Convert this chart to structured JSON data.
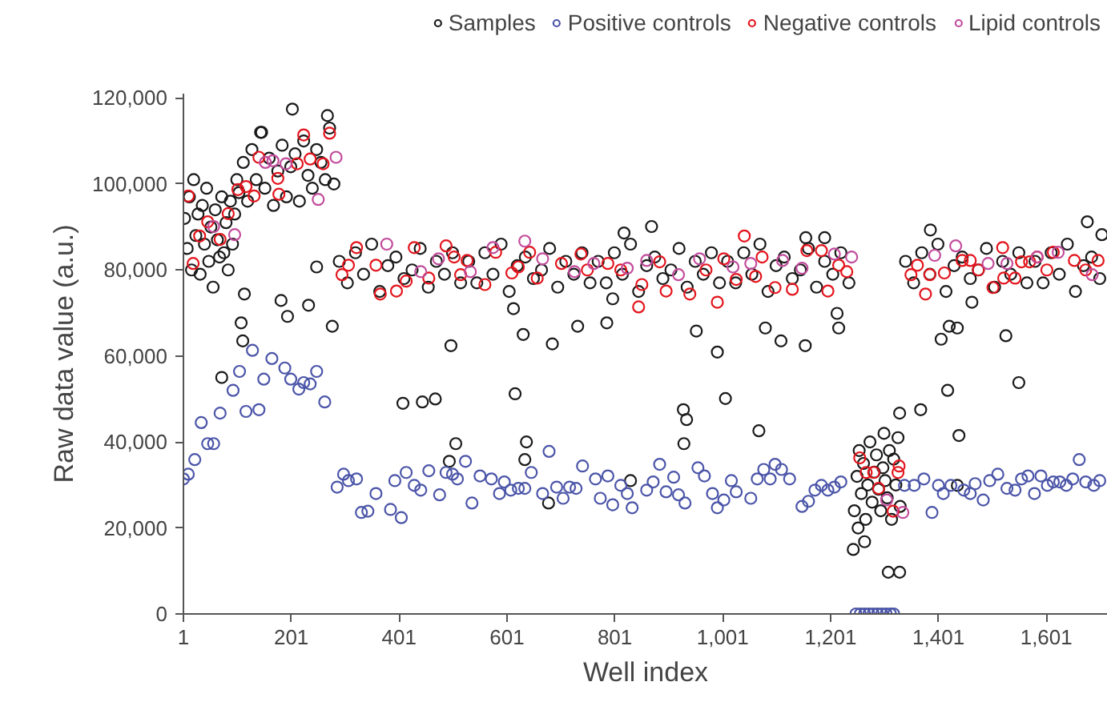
{
  "chart_data": {
    "type": "scatter",
    "xlabel": "Well index",
    "ylabel": "Raw data value (a.u.)",
    "xlim": [
      1,
      1715
    ],
    "ylim": [
      0,
      121000
    ],
    "xticks": [
      1,
      {
        "value": 201,
        "label": "201"
      },
      {
        "value": 401,
        "label": "401"
      },
      {
        "value": 601,
        "label": "601"
      },
      {
        "value": 801,
        "label": "801"
      },
      {
        "value": 1001,
        "label": "1,001"
      },
      {
        "value": 1201,
        "label": "1,201"
      },
      {
        "value": 1401,
        "label": "1,401"
      },
      {
        "value": 1601,
        "label": "1,601"
      }
    ],
    "yticks": [
      0,
      {
        "value": 20000,
        "label": "20,000"
      },
      {
        "value": 40000,
        "label": "40,000"
      },
      {
        "value": 60000,
        "label": "60,000"
      },
      {
        "value": 80000,
        "label": "80,000"
      },
      {
        "value": 100000,
        "label": "100,000"
      },
      {
        "value": 120000,
        "label": "120,000"
      }
    ],
    "grid": false,
    "legend": "top",
    "marker": "circle",
    "series": [
      {
        "name": "Samples",
        "color": "#1a1a1a",
        "x": [
          3,
          8,
          12,
          16,
          20,
          24,
          28,
          32,
          36,
          40,
          44,
          48,
          52,
          56,
          60,
          64,
          68,
          72,
          76,
          80,
          84,
          88,
          92,
          96,
          100,
          104,
          112,
          120,
          128,
          136,
          144,
          152,
          160,
          168,
          176,
          184,
          192,
          200,
          208,
          216,
          224,
          232,
          240,
          248,
          256,
          264,
          272,
          280,
          72,
          114,
          108,
          111,
          182,
          194,
          233,
          248,
          277,
          203,
          268,
          146,
          290,
          305,
          320,
          335,
          350,
          365,
          380,
          395,
          410,
          425,
          440,
          455,
          470,
          485,
          500,
          515,
          530,
          545,
          560,
          575,
          590,
          605,
          620,
          635,
          650,
          665,
          680,
          695,
          710,
          725,
          740,
          755,
          770,
          785,
          800,
          815,
          830,
          845,
          860,
          875,
          890,
          905,
          920,
          935,
          950,
          965,
          980,
          995,
          1010,
          1025,
          1040,
          1055,
          1070,
          1085,
          1100,
          1115,
          1130,
          1145,
          1160,
          1175,
          1190,
          1205,
          1220,
          1235,
          408,
          444,
          468,
          497,
          506,
          494,
          616,
          631,
          637,
          634,
          685,
          678,
          613,
          732,
          786,
          797,
          869,
          818,
          952,
          991,
          1006,
          928,
          934,
          929,
          1068,
          830,
          1080,
          1109,
          1154,
          1213,
          1216,
          1155,
          1190,
          1243,
          1264,
          1308,
          1329,
          1329,
          1245,
          1250,
          1254,
          1258,
          1262,
          1266,
          1270,
          1274,
          1278,
          1282,
          1286,
          1290,
          1294,
          1298,
          1302,
          1306,
          1310,
          1314,
          1318,
          1322,
          1326,
          1330,
          1252,
          1300,
          1340,
          1355,
          1370,
          1385,
          1400,
          1415,
          1430,
          1445,
          1460,
          1475,
          1490,
          1505,
          1520,
          1535,
          1550,
          1565,
          1580,
          1595,
          1610,
          1625,
          1640,
          1655,
          1670,
          1685,
          1700,
          1368,
          1418,
          1439,
          1406,
          1421,
          1436,
          1526,
          1550,
          1463,
          1677,
          1704,
          1386,
          1436
        ],
        "values": [
          92000,
          85000,
          97000,
          80000,
          101000,
          88000,
          93000,
          79000,
          95000,
          86000,
          99000,
          82000,
          90000,
          76000,
          94000,
          87000,
          83000,
          97000,
          84000,
          91000,
          80000,
          96000,
          86000,
          93000,
          101000,
          98000,
          105000,
          96000,
          108000,
          101000,
          112000,
          99000,
          106000,
          95000,
          103000,
          109000,
          97000,
          104000,
          107000,
          96000,
          110000,
          102000,
          99000,
          108000,
          105000,
          101000,
          113000,
          100000,
          55000,
          74400,
          67700,
          63500,
          72900,
          69200,
          71800,
          80700,
          66900,
          117400,
          115900,
          112000,
          82000,
          77000,
          84000,
          79000,
          86000,
          75000,
          81000,
          83000,
          78000,
          80000,
          85000,
          76000,
          82000,
          79000,
          84000,
          77000,
          82000,
          77000,
          84000,
          79000,
          86000,
          75000,
          81000,
          83000,
          78000,
          80000,
          85000,
          76000,
          82000,
          79000,
          84000,
          77000,
          82000,
          77000,
          84000,
          79000,
          86000,
          75000,
          81000,
          83000,
          78000,
          80000,
          85000,
          76000,
          82000,
          79000,
          84000,
          77000,
          82000,
          77000,
          84000,
          79000,
          86000,
          75000,
          81000,
          83000,
          78000,
          80000,
          85000,
          76000,
          82000,
          79000,
          84000,
          77000,
          49000,
          49300,
          50000,
          62400,
          39600,
          35500,
          51200,
          65000,
          40000,
          35900,
          62800,
          25800,
          71000,
          66900,
          67700,
          73300,
          90100,
          88600,
          65800,
          60900,
          50100,
          47500,
          45200,
          39600,
          42600,
          31000,
          66500,
          63500,
          62400,
          69900,
          66500,
          87500,
          87500,
          15000,
          16800,
          9700,
          9700,
          46700,
          24000,
          32000,
          38000,
          28000,
          35000,
          22000,
          30000,
          40000,
          26000,
          33000,
          37000,
          29000,
          24000,
          34000,
          31000,
          27000,
          38000,
          22000,
          36000,
          30000,
          41000,
          25000,
          20000,
          42000,
          82000,
          77000,
          84000,
          79000,
          86000,
          75000,
          81000,
          83000,
          78000,
          80000,
          85000,
          76000,
          82000,
          79000,
          84000,
          77000,
          82000,
          77000,
          84000,
          79000,
          86000,
          75000,
          81000,
          83000,
          78000,
          47500,
          52000,
          41500,
          63900,
          66900,
          66500,
          64700,
          53800,
          72500,
          91200,
          88200,
          89300,
          29900
        ]
      },
      {
        "name": "Positive controls",
        "color": "#4b55a8",
        "x": [
          1,
          10,
          22,
          34,
          46,
          57,
          69,
          93,
          105,
          117,
          129,
          141,
          150,
          165,
          189,
          200,
          215,
          224,
          236,
          248,
          263,
          286,
          298,
          307,
          322,
          331,
          343,
          358,
          385,
          393,
          405,
          414,
          429,
          441,
          456,
          476,
          488,
          500,
          509,
          524,
          536,
          551,
          572,
          587,
          596,
          608,
          622,
          634,
          646,
          667,
          679,
          693,
          705,
          717,
          729,
          741,
          765,
          774,
          788,
          797,
          812,
          824,
          833,
          860,
          872,
          884,
          896,
          910,
          919,
          931,
          955,
          967,
          982,
          991,
          1003,
          1017,
          1026,
          1053,
          1065,
          1077,
          1089,
          1098,
          1110,
          1125,
          1148,
          1160,
          1172,
          1184,
          1196,
          1208,
          1220,
          1248,
          1256,
          1264,
          1272,
          1280,
          1288,
          1296,
          1304,
          1312,
          1318,
          1338,
          1356,
          1374,
          1389,
          1401,
          1410,
          1424,
          1448,
          1460,
          1469,
          1484,
          1496,
          1511,
          1528,
          1543,
          1555,
          1567,
          1579,
          1591,
          1603,
          1614,
          1626,
          1638,
          1650,
          1662,
          1674,
          1689,
          1700
        ],
        "values": [
          31400,
          32500,
          35900,
          44500,
          39600,
          39600,
          46700,
          52000,
          56400,
          47100,
          61300,
          47500,
          54600,
          59400,
          57200,
          54600,
          52300,
          53800,
          53500,
          56400,
          49300,
          29500,
          32500,
          31000,
          31400,
          23600,
          23900,
          28000,
          24300,
          31000,
          22400,
          32900,
          29900,
          28800,
          33300,
          27700,
          32900,
          32500,
          31400,
          35500,
          25800,
          32100,
          31400,
          28000,
          30700,
          28800,
          29200,
          29200,
          32900,
          28000,
          37800,
          29500,
          26900,
          29500,
          29200,
          34400,
          31400,
          26900,
          32100,
          25400,
          29900,
          28000,
          24700,
          28800,
          30700,
          34800,
          28400,
          31800,
          27700,
          25800,
          34000,
          32100,
          28000,
          24700,
          26500,
          31000,
          28400,
          26900,
          31400,
          33600,
          31400,
          34800,
          33600,
          31400,
          25000,
          26200,
          28800,
          29900,
          28800,
          29500,
          30700,
          0,
          0,
          0,
          0,
          0,
          0,
          0,
          0,
          0,
          0,
          29900,
          29900,
          31400,
          23600,
          29900,
          28000,
          29900,
          28800,
          28000,
          30300,
          26500,
          31000,
          32500,
          29200,
          28800,
          31400,
          32100,
          28000,
          32100,
          29900,
          30700,
          30700,
          29900,
          31400,
          35900,
          30700,
          29900,
          31000
        ]
      },
      {
        "name": "Negative controls",
        "color": "#e3141c",
        "x": [
          10,
          19,
          31,
          46,
          69,
          84,
          102,
          117,
          132,
          141,
          176,
          178,
          224,
          236,
          212,
          260,
          272,
          307,
          295,
          322,
          358,
          366,
          396,
          414,
          429,
          456,
          488,
          503,
          515,
          527,
          560,
          580,
          610,
          622,
          643,
          657,
          702,
          738,
          750,
          788,
          812,
          845,
          851,
          884,
          896,
          940,
          970,
          991,
          1003,
          1026,
          1041,
          1062,
          1074,
          1098,
          1130,
          1157,
          1184,
          1196,
          1216,
          1231,
          1255,
          1267,
          1281,
          1290,
          1317,
          1326,
          1328,
          1350,
          1362,
          1377,
          1385,
          1412,
          1445,
          1460,
          1475,
          1502,
          1520,
          1522,
          1543,
          1555,
          1570,
          1584,
          1602,
          1614,
          1653,
          1674,
          1697
        ],
        "values": [
          97200,
          81500,
          87900,
          91200,
          87100,
          93100,
          98700,
          99400,
          97200,
          106200,
          101300,
          97600,
          111400,
          105800,
          104700,
          104700,
          111800,
          81100,
          78900,
          85200,
          81100,
          74400,
          75100,
          77400,
          85200,
          78100,
          85600,
          83000,
          78900,
          82200,
          76600,
          84100,
          79300,
          80700,
          84100,
          78100,
          81500,
          83700,
          80000,
          81500,
          80000,
          71400,
          76600,
          81900,
          75100,
          74400,
          80000,
          72500,
          82600,
          77800,
          87900,
          78500,
          83000,
          75900,
          75500,
          84500,
          84500,
          75100,
          81100,
          79600,
          36300,
          32900,
          32900,
          29200,
          23900,
          32900,
          34400,
          78900,
          81100,
          74400,
          78900,
          79300,
          82200,
          82200,
          80000,
          75900,
          85200,
          78100,
          78100,
          81900,
          81900,
          83000,
          80000,
          84100,
          82200,
          80000,
          82200
        ]
      },
      {
        "name": "Lipid controls",
        "color": "#c24c9c",
        "x": [
          57,
          96,
          153,
          167,
          191,
          251,
          284,
          378,
          441,
          474,
          533,
          575,
          634,
          667,
          726,
          762,
          824,
          860,
          919,
          958,
          1020,
          1053,
          1112,
          1148,
          1208,
          1240,
          1305,
          1335,
          1394,
          1433,
          1493,
          1528,
          1584,
          1623,
          1686
        ],
        "values": [
          90100,
          88200,
          105000,
          105400,
          104700,
          96400,
          106200,
          86000,
          79600,
          82600,
          79600,
          85200,
          86700,
          82600,
          79600,
          81500,
          80400,
          82200,
          78900,
          82600,
          80700,
          81500,
          82200,
          80400,
          83700,
          83000,
          26500,
          23600,
          83400,
          85600,
          81500,
          81500,
          83000,
          84100,
          78900
        ]
      }
    ]
  }
}
